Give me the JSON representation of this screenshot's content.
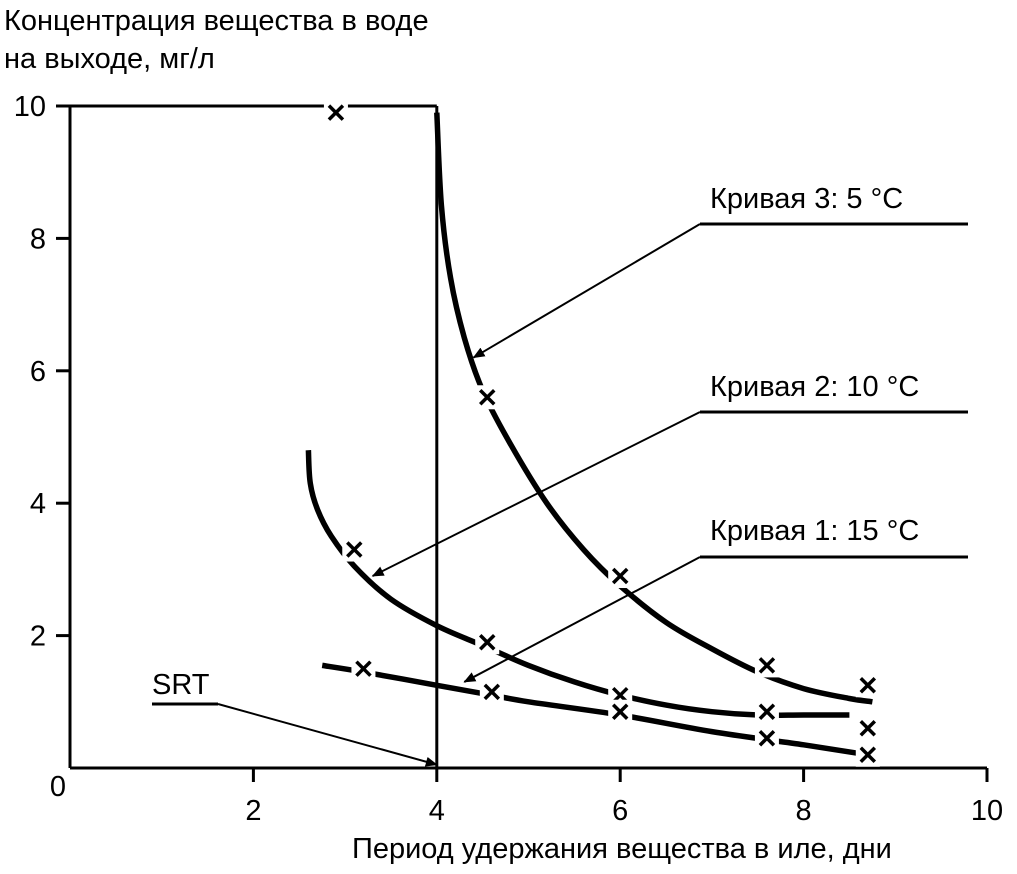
{
  "chart_data": {
    "type": "line",
    "ylabel_lines": [
      "Концентрация вещества в воде",
      "на выходе, мг/л"
    ],
    "xlabel": "Период удержания вещества в иле, дни",
    "xlim": [
      0,
      10
    ],
    "ylim": [
      0,
      10
    ],
    "x_ticks": [
      2,
      4,
      6,
      8,
      10
    ],
    "y_ticks": [
      2,
      4,
      6,
      8,
      10
    ],
    "origin_label": "0",
    "grid": false,
    "series": [
      {
        "name": "Кривая 3: 5 °C",
        "curve": [
          [
            4.0,
            9.9
          ],
          [
            4.05,
            8.5
          ],
          [
            4.15,
            7.4
          ],
          [
            4.3,
            6.5
          ],
          [
            4.5,
            5.7
          ],
          [
            4.8,
            4.9
          ],
          [
            5.2,
            4.0
          ],
          [
            5.6,
            3.3
          ],
          [
            6.0,
            2.75
          ],
          [
            6.5,
            2.2
          ],
          [
            7.0,
            1.8
          ],
          [
            7.5,
            1.45
          ],
          [
            8.0,
            1.2
          ],
          [
            8.5,
            1.05
          ],
          [
            8.75,
            1.0
          ]
        ],
        "markers": [
          [
            4.55,
            5.6
          ],
          [
            6.0,
            2.9
          ],
          [
            7.6,
            1.55
          ],
          [
            8.7,
            1.25
          ]
        ]
      },
      {
        "name": "Кривая 2: 10 °C",
        "curve": [
          [
            2.6,
            4.8
          ],
          [
            2.62,
            4.3
          ],
          [
            2.7,
            3.9
          ],
          [
            2.85,
            3.5
          ],
          [
            3.1,
            3.05
          ],
          [
            3.5,
            2.55
          ],
          [
            4.0,
            2.15
          ],
          [
            4.5,
            1.85
          ],
          [
            5.0,
            1.55
          ],
          [
            5.5,
            1.3
          ],
          [
            6.0,
            1.1
          ],
          [
            6.5,
            0.95
          ],
          [
            7.0,
            0.85
          ],
          [
            7.5,
            0.8
          ],
          [
            8.0,
            0.8
          ],
          [
            8.5,
            0.8
          ]
        ],
        "markers": [
          [
            3.1,
            3.3
          ],
          [
            4.55,
            1.9
          ],
          [
            6.0,
            1.1
          ],
          [
            7.6,
            0.85
          ],
          [
            8.7,
            0.6
          ]
        ]
      },
      {
        "name": "Кривая 1: 15 °C",
        "curve": [
          [
            2.75,
            1.55
          ],
          [
            3.2,
            1.45
          ],
          [
            4.0,
            1.25
          ],
          [
            4.6,
            1.1
          ],
          [
            5.0,
            1.0
          ],
          [
            6.0,
            0.8
          ],
          [
            7.0,
            0.55
          ],
          [
            8.0,
            0.35
          ],
          [
            8.7,
            0.2
          ]
        ],
        "markers": [
          [
            3.2,
            1.5
          ],
          [
            4.6,
            1.15
          ],
          [
            6.0,
            0.85
          ],
          [
            7.6,
            0.45
          ],
          [
            8.7,
            0.2
          ]
        ]
      }
    ],
    "vertical_line_x": 4,
    "extra_markers": [
      [
        2.9,
        9.9
      ]
    ],
    "annotations": [
      {
        "label": "Кривая 3: 5 °C",
        "target": [
          4.4,
          6.2
        ]
      },
      {
        "label": "Кривая 2: 10 °C",
        "target": [
          3.3,
          2.9
        ]
      },
      {
        "label": "Кривая 1: 15 °C",
        "target": [
          4.3,
          1.3
        ]
      },
      {
        "label": "SRT",
        "target": [
          4.0,
          0.05
        ]
      }
    ]
  }
}
